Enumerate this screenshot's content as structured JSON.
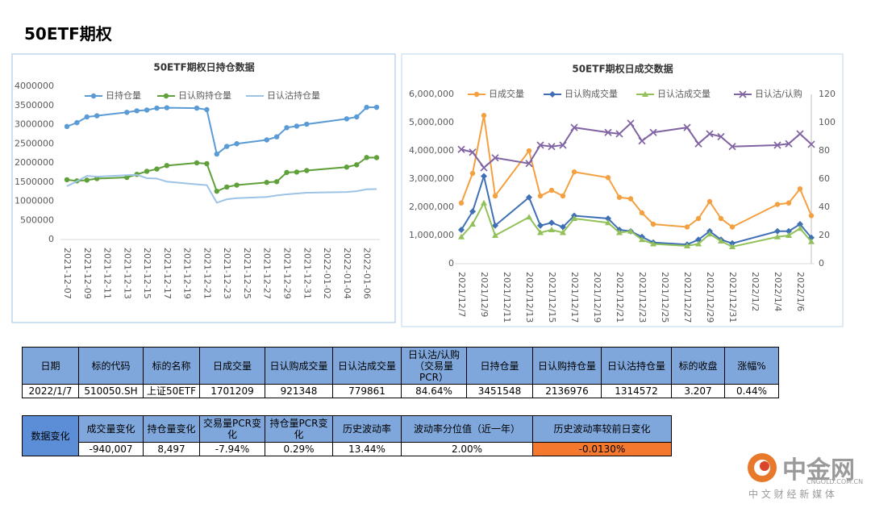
{
  "title": "50ETF期权",
  "chart_data": [
    {
      "type": "line",
      "title": "50ETF期权日持仓数据",
      "x": [
        "2021-12-07",
        "2021-12-08",
        "2021-12-09",
        "2021-12-10",
        "2021-12-13",
        "2021-12-14",
        "2021-12-15",
        "2021-12-16",
        "2021-12-17",
        "2021-12-20",
        "2021-12-21",
        "2021-12-22",
        "2021-12-23",
        "2021-12-24",
        "2021-12-27",
        "2021-12-28",
        "2021-12-29",
        "2021-12-30",
        "2021-12-31",
        "2022-01-04",
        "2022-01-05",
        "2022-01-06",
        "2022-01-07"
      ],
      "xlim": [
        "2021-12-07",
        "2022-01-07"
      ],
      "xticks": [
        "2021-12-07",
        "2021-12-09",
        "2021-12-11",
        "2021-12-13",
        "2021-12-15",
        "2021-12-17",
        "2021-12-19",
        "2021-12-21",
        "2021-12-23",
        "2021-12-25",
        "2021-12-27",
        "2021-12-29",
        "2021-12-31",
        "2022-01-02",
        "2022-01-04",
        "2022-01-06"
      ],
      "ylim": [
        0,
        4000000
      ],
      "yticks": [
        0,
        500000,
        1000000,
        1500000,
        2000000,
        2500000,
        3000000,
        3500000,
        4000000
      ],
      "series": [
        {
          "name": "日持仓量",
          "color": "#5b9bd5",
          "marker": "circle",
          "values": [
            2950000,
            3050000,
            3200000,
            3230000,
            3320000,
            3360000,
            3380000,
            3430000,
            3440000,
            3430000,
            3390000,
            2230000,
            2430000,
            2500000,
            2600000,
            2680000,
            2920000,
            2960000,
            3010000,
            3150000,
            3200000,
            3450000,
            3451548
          ]
        },
        {
          "name": "日认购持仓量",
          "color": "#5fa03a",
          "marker": "circle",
          "values": [
            1560000,
            1530000,
            1550000,
            1590000,
            1620000,
            1700000,
            1780000,
            1840000,
            1930000,
            2000000,
            1980000,
            1260000,
            1370000,
            1420000,
            1490000,
            1510000,
            1750000,
            1760000,
            1800000,
            1890000,
            1950000,
            2140000,
            2136976
          ]
        },
        {
          "name": "日认沽持仓量",
          "color": "#9dc3e6",
          "marker": "none",
          "values": [
            1390000,
            1520000,
            1660000,
            1640000,
            1680000,
            1690000,
            1600000,
            1590000,
            1510000,
            1440000,
            1420000,
            960000,
            1050000,
            1080000,
            1110000,
            1150000,
            1180000,
            1200000,
            1220000,
            1240000,
            1260000,
            1310000,
            1314572
          ]
        }
      ]
    },
    {
      "type": "line",
      "title": "50ETF期权日成交数据",
      "x": [
        "2021/12/7",
        "2021/12/8",
        "2021/12/9",
        "2021/12/10",
        "2021/12/13",
        "2021/12/14",
        "2021/12/15",
        "2021/12/16",
        "2021/12/17",
        "2021/12/20",
        "2021/12/21",
        "2021/12/22",
        "2021/12/23",
        "2021/12/24",
        "2021/12/27",
        "2021/12/28",
        "2021/12/29",
        "2021/12/30",
        "2021/12/31",
        "2022/1/4",
        "2022/1/5",
        "2022/1/6",
        "2022/1/7"
      ],
      "xlim": [
        "2021/12/7",
        "2022/1/7"
      ],
      "xticks": [
        "2021/12/7",
        "2021/12/9",
        "2021/12/11",
        "2021/12/13",
        "2021/12/15",
        "2021/12/17",
        "2021/12/19",
        "2021/12/21",
        "2021/12/23",
        "2021/12/25",
        "2021/12/27",
        "2021/12/29",
        "2021/12/31",
        "2022/1/2",
        "2022/1/4",
        "2022/1/6"
      ],
      "ylim": [
        0,
        6000000
      ],
      "yticks": [
        0,
        {
          "value": 1000000,
          "label": "1,000,000"
        },
        {
          "value": 2000000,
          "label": "2,000,000"
        },
        {
          "value": 3000000,
          "label": "3,000,000"
        },
        {
          "value": 4000000,
          "label": "4,000,000"
        },
        {
          "value": 5000000,
          "label": "5,000,000"
        },
        {
          "value": 6000000,
          "label": "6,000,000"
        }
      ],
      "y2lim": [
        0,
        120
      ],
      "y2ticks": [
        0,
        20,
        40,
        60,
        80,
        100,
        120
      ],
      "series": [
        {
          "name": "日成交量",
          "color": "#f4a040",
          "marker": "circle",
          "values": [
            2150000,
            3200000,
            5250000,
            2400000,
            4000000,
            2400000,
            2600000,
            2400000,
            3250000,
            3050000,
            2350000,
            2300000,
            1800000,
            1400000,
            1300000,
            1600000,
            2200000,
            1600000,
            1300000,
            2100000,
            2150000,
            2650000,
            1701209
          ]
        },
        {
          "name": "日认购成交量",
          "color": "#3f6fb5",
          "marker": "diamond",
          "values": [
            1200000,
            1850000,
            3100000,
            1350000,
            2350000,
            1350000,
            1450000,
            1300000,
            1700000,
            1600000,
            1200000,
            1150000,
            950000,
            750000,
            680000,
            850000,
            1150000,
            850000,
            720000,
            1150000,
            1150000,
            1400000,
            921348
          ]
        },
        {
          "name": "日认沽成交量",
          "color": "#92c15a",
          "marker": "triangle",
          "values": [
            950000,
            1400000,
            2150000,
            1000000,
            1650000,
            1100000,
            1200000,
            1100000,
            1600000,
            1450000,
            1100000,
            1150000,
            850000,
            700000,
            630000,
            700000,
            1050000,
            800000,
            600000,
            950000,
            1000000,
            1250000,
            779861
          ]
        },
        {
          "name": "日认沽/认购",
          "color": "#8064a2",
          "marker": "x",
          "axis": "y2",
          "values": [
            81,
            79,
            68,
            75,
            71,
            84,
            83,
            84,
            96.5,
            93,
            92,
            99.5,
            87,
            93,
            96.5,
            85,
            92,
            90,
            83,
            84,
            85,
            92,
            84.64
          ]
        }
      ]
    }
  ],
  "tables": [
    {
      "headers": [
        "日期",
        "标的代码",
        "标的名称",
        "日成交量",
        "日认购成交量",
        "日认沽成交量",
        "日认沽/认购（交易量PCR）",
        "日持仓量",
        "日认购持仓量",
        "日认沽持仓量",
        "标的收盘",
        "涨幅%"
      ],
      "rows": [
        [
          "2022/1/7",
          "510050.SH",
          "上证50ETF",
          "1701209",
          "921348",
          "779861",
          "84.64%",
          "3451548",
          "2136976",
          "1314572",
          "3.207",
          "0.44%"
        ]
      ]
    },
    {
      "row_header": "数据变化",
      "headers": [
        "成交量变化",
        "持仓量变化",
        "交易量PCR变化",
        "持仓量PCR变化",
        "历史波动率",
        "波动率分位值（近一年）",
        "历史波动率较前日变化"
      ],
      "rows": [
        [
          "-940,007",
          "8,497",
          "-7.94%",
          "0.29%",
          "13.44%",
          "2.00%",
          "-0.0130%"
        ]
      ]
    }
  ],
  "watermark": {
    "name": "中金网",
    "domain": "CNGOLD.COM.CN",
    "slogan": "中 文 财 经 新 媒 体"
  }
}
